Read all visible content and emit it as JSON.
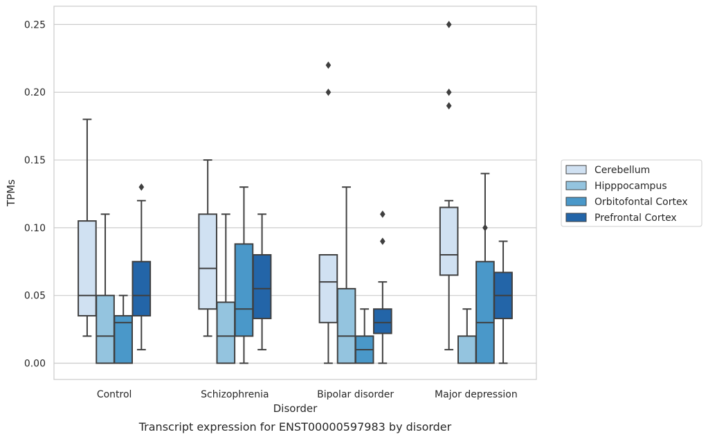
{
  "caption": "Transcript expression for ENST00000597983 by disorder",
  "chart_data": {
    "type": "box",
    "xlabel": "Disorder",
    "ylabel": "TPMs",
    "ylim": [
      -0.012,
      0.2635
    ],
    "yticks": [
      0.0,
      0.05,
      0.1,
      0.15,
      0.2,
      0.25
    ],
    "ytick_labels": [
      "0.00",
      "0.05",
      "0.10",
      "0.15",
      "0.20",
      "0.25"
    ],
    "categories": [
      "Control",
      "Schizophrenia",
      "Bipolar disorder",
      "Major depression"
    ],
    "grid": "horizontal",
    "legend_position": "right",
    "series": [
      {
        "name": "Cerebellum",
        "color": "#d0e1f2",
        "boxes": [
          {
            "whislo": 0.02,
            "q1": 0.035,
            "med": 0.05,
            "q3": 0.105,
            "whishi": 0.18,
            "fliers": []
          },
          {
            "whislo": 0.02,
            "q1": 0.04,
            "med": 0.07,
            "q3": 0.11,
            "whishi": 0.15,
            "fliers": []
          },
          {
            "whislo": 0.0,
            "q1": 0.03,
            "med": 0.06,
            "q3": 0.08,
            "whishi": 0.08,
            "fliers": [
              0.2,
              0.22
            ]
          },
          {
            "whislo": 0.01,
            "q1": 0.065,
            "med": 0.08,
            "q3": 0.115,
            "whishi": 0.12,
            "fliers": [
              0.19,
              0.2,
              0.25
            ]
          }
        ]
      },
      {
        "name": "Hipppocampus",
        "color": "#94c4df",
        "boxes": [
          {
            "whislo": 0.0,
            "q1": 0.0,
            "med": 0.02,
            "q3": 0.05,
            "whishi": 0.11,
            "fliers": []
          },
          {
            "whislo": 0.0,
            "q1": 0.0,
            "med": 0.02,
            "q3": 0.045,
            "whishi": 0.11,
            "fliers": []
          },
          {
            "whislo": 0.0,
            "q1": 0.0,
            "med": 0.02,
            "q3": 0.055,
            "whishi": 0.13,
            "fliers": []
          },
          {
            "whislo": 0.0,
            "q1": 0.0,
            "med": 0.0,
            "q3": 0.02,
            "whishi": 0.04,
            "fliers": []
          }
        ]
      },
      {
        "name": "Orbitofontal Cortex",
        "color": "#4a98c9",
        "boxes": [
          {
            "whislo": 0.0,
            "q1": 0.0,
            "med": 0.03,
            "q3": 0.035,
            "whishi": 0.05,
            "fliers": []
          },
          {
            "whislo": 0.0,
            "q1": 0.02,
            "med": 0.04,
            "q3": 0.088,
            "whishi": 0.13,
            "fliers": []
          },
          {
            "whislo": 0.0,
            "q1": 0.0,
            "med": 0.01,
            "q3": 0.02,
            "whishi": 0.04,
            "fliers": []
          },
          {
            "whislo": 0.0,
            "q1": 0.0,
            "med": 0.03,
            "q3": 0.075,
            "whishi": 0.14,
            "fliers": [
              0.1
            ]
          }
        ]
      },
      {
        "name": "Prefrontal Cortex",
        "color": "#2365a8",
        "boxes": [
          {
            "whislo": 0.01,
            "q1": 0.035,
            "med": 0.05,
            "q3": 0.075,
            "whishi": 0.12,
            "fliers": [
              0.13
            ]
          },
          {
            "whislo": 0.01,
            "q1": 0.033,
            "med": 0.055,
            "q3": 0.08,
            "whishi": 0.11,
            "fliers": []
          },
          {
            "whislo": 0.0,
            "q1": 0.022,
            "med": 0.03,
            "q3": 0.04,
            "whishi": 0.06,
            "fliers": [
              0.09,
              0.11
            ]
          },
          {
            "whislo": 0.0,
            "q1": 0.033,
            "med": 0.05,
            "q3": 0.067,
            "whishi": 0.09,
            "fliers": []
          }
        ]
      }
    ]
  }
}
